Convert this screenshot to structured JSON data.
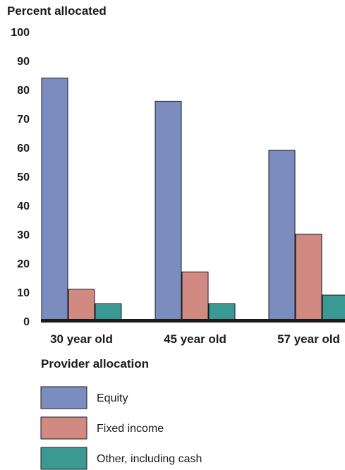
{
  "chart_data": {
    "type": "bar",
    "ylabel": "Percent allocated",
    "ylim": [
      0,
      100
    ],
    "yticks": [
      0,
      10,
      20,
      30,
      40,
      50,
      60,
      70,
      80,
      90,
      100
    ],
    "categories": [
      "30 year old",
      "45 year old",
      "57 year old"
    ],
    "series": [
      {
        "name": "Equity",
        "values": [
          84,
          76,
          59
        ],
        "color": "#7b8dbe"
      },
      {
        "name": "Fixed income",
        "values": [
          11,
          17,
          30
        ],
        "color": "#d08a82"
      },
      {
        "name": "Other, including cash",
        "values": [
          6,
          6,
          9
        ],
        "color": "#3a9a93"
      }
    ],
    "legend_title": "Provider allocation",
    "legend_position": "bottom-left",
    "grid": false
  }
}
